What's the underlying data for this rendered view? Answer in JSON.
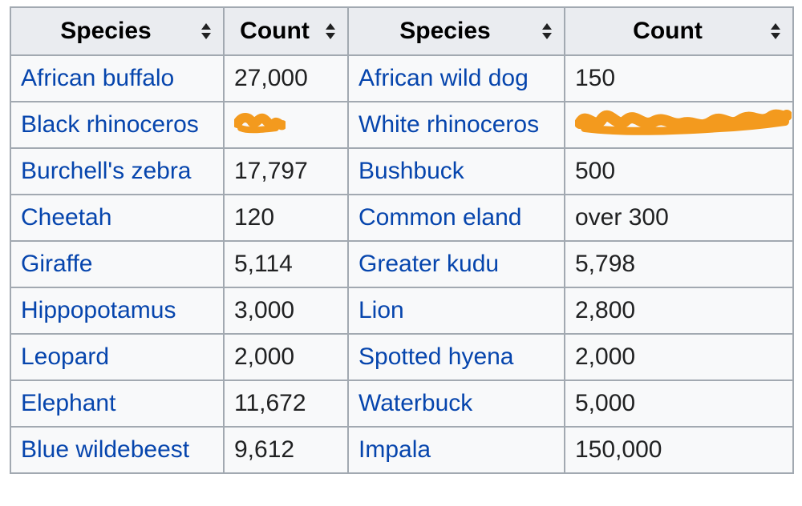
{
  "table": {
    "headers": [
      {
        "label": "Species"
      },
      {
        "label": "Count"
      },
      {
        "label": "Species"
      },
      {
        "label": "Count"
      }
    ],
    "rows": [
      {
        "species_a": "African buffalo",
        "count_a": "27,000",
        "species_b": "African wild dog",
        "count_b": "150"
      },
      {
        "species_a": "Black rhinoceros",
        "count_a": "",
        "species_b": "White rhinoceros",
        "count_b": ""
      },
      {
        "species_a": "Burchell's zebra",
        "count_a": "17,797",
        "species_b": "Bushbuck",
        "count_b": "500"
      },
      {
        "species_a": "Cheetah",
        "count_a": "120",
        "species_b": "Common eland",
        "count_b": "over 300"
      },
      {
        "species_a": "Giraffe",
        "count_a": "5,114",
        "species_b": "Greater kudu",
        "count_b": "5,798"
      },
      {
        "species_a": "Hippopotamus",
        "count_a": "3,000",
        "species_b": "Lion",
        "count_b": "2,800"
      },
      {
        "species_a": "Leopard",
        "count_a": "2,000",
        "species_b": "Spotted hyena",
        "count_b": "2,000"
      },
      {
        "species_a": "Elephant",
        "count_a": "11,672",
        "species_b": "Waterbuck",
        "count_b": "5,000"
      },
      {
        "species_a": "Blue wildebeest",
        "count_a": "9,612",
        "species_b": "Impala",
        "count_b": "150,000"
      }
    ]
  },
  "redaction": {
    "color": "#f39a1e",
    "icon": "orange-scribble-redaction"
  },
  "colors": {
    "link": "#0645ad",
    "header_bg": "#eaecf0",
    "cell_bg": "#f8f9fa",
    "border": "#a2a9b1"
  }
}
